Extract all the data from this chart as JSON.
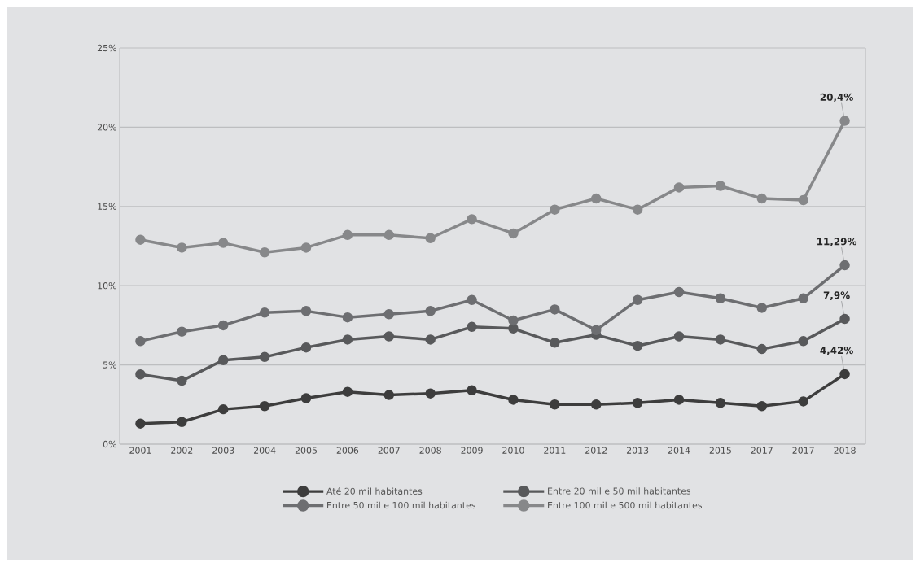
{
  "chart_data": {
    "type": "line",
    "categories": [
      "2001",
      "2002",
      "2003",
      "2004",
      "2005",
      "2006",
      "2007",
      "2008",
      "2009",
      "2010",
      "2011",
      "2012",
      "2013",
      "2014",
      "2015",
      "2017",
      "2017",
      "2018"
    ],
    "series": [
      {
        "name": "Até 20 mil habitantes",
        "color": "#3d3d3d",
        "values": [
          1.3,
          1.4,
          2.2,
          2.4,
          2.9,
          3.3,
          3.1,
          3.2,
          3.4,
          2.8,
          2.5,
          2.5,
          2.6,
          2.8,
          2.6,
          2.4,
          2.7,
          4.42
        ],
        "value_labels": [
          null,
          null,
          null,
          null,
          null,
          null,
          null,
          null,
          null,
          null,
          null,
          null,
          null,
          null,
          null,
          null,
          null,
          "4,42%"
        ]
      },
      {
        "name": "Entre 20 mil e 50 mil habitantes",
        "color": "#58595b",
        "values": [
          4.4,
          4.0,
          5.3,
          5.5,
          6.1,
          6.6,
          6.8,
          6.6,
          7.4,
          7.3,
          6.4,
          6.9,
          6.2,
          6.8,
          6.6,
          6.0,
          6.5,
          7.9
        ],
        "value_labels": [
          null,
          null,
          null,
          null,
          null,
          null,
          null,
          null,
          null,
          null,
          null,
          null,
          null,
          null,
          null,
          null,
          null,
          "7,9%"
        ]
      },
      {
        "name": "Entre 50 mil e 100 mil habitantes",
        "color": "#6d6e71",
        "values": [
          6.5,
          7.1,
          7.5,
          8.3,
          8.4,
          8.0,
          8.2,
          8.4,
          9.1,
          7.8,
          8.5,
          7.2,
          9.1,
          9.6,
          9.2,
          8.6,
          9.2,
          11.29
        ],
        "value_labels": [
          null,
          null,
          null,
          null,
          null,
          null,
          null,
          null,
          null,
          null,
          null,
          null,
          null,
          null,
          null,
          null,
          null,
          "11,29%"
        ]
      },
      {
        "name": "Entre 100 mil e 500 mil habitantes",
        "color": "#87888a",
        "values": [
          12.9,
          12.4,
          12.7,
          12.1,
          12.4,
          13.2,
          13.2,
          13.0,
          14.2,
          13.3,
          14.8,
          15.5,
          14.8,
          16.2,
          16.3,
          15.5,
          15.4,
          20.4
        ],
        "value_labels": [
          null,
          null,
          null,
          null,
          null,
          null,
          null,
          null,
          null,
          null,
          null,
          null,
          null,
          null,
          null,
          null,
          null,
          "20,4%"
        ]
      }
    ],
    "ylim": [
      0,
      25
    ],
    "yticks": [
      {
        "value": 0,
        "label": "0%"
      },
      {
        "value": 5,
        "label": "5%"
      },
      {
        "value": 10,
        "label": "10%"
      },
      {
        "value": 15,
        "label": "15%"
      },
      {
        "value": 20,
        "label": "20%"
      },
      {
        "value": 25,
        "label": "25%"
      }
    ],
    "grid": "y",
    "legend": "bottom",
    "marker": "circle",
    "line_style": "solid"
  }
}
